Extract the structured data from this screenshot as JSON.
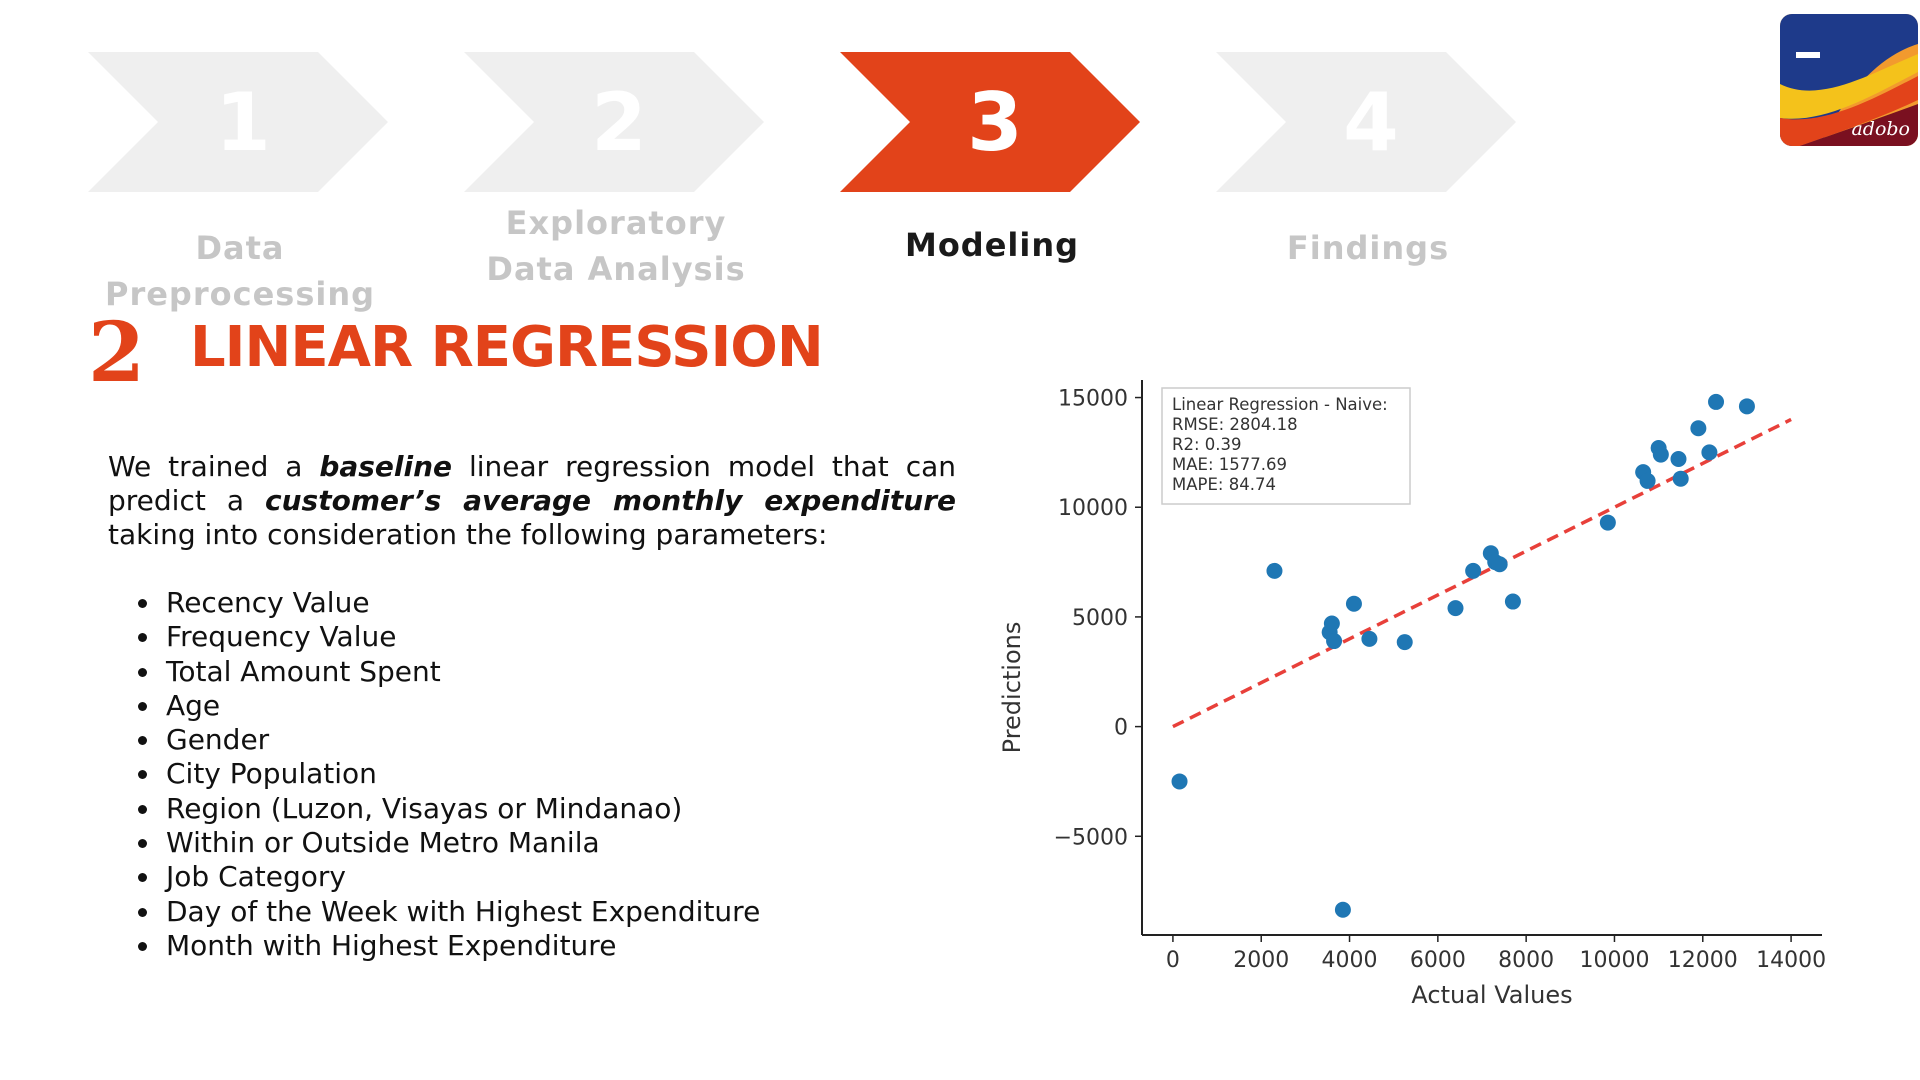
{
  "steps": [
    {
      "number": "1",
      "label_lines": [
        "Data Preprocessing"
      ],
      "state": "inactive"
    },
    {
      "number": "2",
      "label_lines": [
        "Exploratory",
        "Data Analysis"
      ],
      "state": "inactive"
    },
    {
      "number": "3",
      "label_lines": [
        "Modeling"
      ],
      "state": "active"
    },
    {
      "number": "4",
      "label_lines": [
        "Findings"
      ],
      "state": "inactive"
    }
  ],
  "colors": {
    "accent": "#e2431a",
    "inactive_chevron": "#efefef",
    "inactive_label": "#c6c6c6",
    "point": "#1f77b4",
    "fit_line": "#e8403a"
  },
  "logo": {
    "text": "adobo",
    "icon": "adobo-logo-icon"
  },
  "section": {
    "number": "2",
    "title": "LINEAR REGRESSION"
  },
  "intro": {
    "p1": "We trained a ",
    "em1": "baseline",
    "p2": " linear regression model that can predict a ",
    "em2": "customer’s average monthly expenditure",
    "p3": " taking into consideration the following parameters:"
  },
  "parameters": [
    "Recency Value",
    "Frequency Value",
    "Total Amount Spent",
    "Age",
    "Gender",
    "City Population",
    "Region (Luzon, Visayas or Mindanao)",
    "Within or Outside Metro Manila",
    "Job Category",
    "Day of the Week with Highest Expenditure",
    "Month with Highest Expenditure"
  ],
  "chart_data": {
    "type": "scatter",
    "title": "",
    "xlabel": "Actual Values",
    "ylabel": "Predictions",
    "xlim": [
      -700,
      14700
    ],
    "ylim": [
      -9500,
      15800
    ],
    "xticks": [
      0,
      2000,
      4000,
      6000,
      8000,
      10000,
      12000,
      14000
    ],
    "xtick_labels": [
      "0",
      "2000",
      "4000",
      "6000",
      "8000",
      "10000",
      "12000",
      "14000"
    ],
    "yticks": [
      -5000,
      0,
      5000,
      10000,
      15000
    ],
    "ytick_labels": [
      "−5000",
      "0",
      "5000",
      "10000",
      "15000"
    ],
    "grid": false,
    "legend_lines": [
      "Linear Regression - Naive:",
      "RMSE: 2804.18",
      "R2: 0.39",
      "MAE: 1577.69",
      "MAPE: 84.74"
    ],
    "legend_position": "top-left",
    "fit_line": {
      "x": [
        0,
        14000
      ],
      "y": [
        0,
        14000
      ],
      "style": "dashed"
    },
    "points": [
      {
        "x": 150,
        "y": -2500
      },
      {
        "x": 2300,
        "y": 7100
      },
      {
        "x": 3550,
        "y": 4300
      },
      {
        "x": 3600,
        "y": 4700
      },
      {
        "x": 3650,
        "y": 3900
      },
      {
        "x": 3850,
        "y": -8350
      },
      {
        "x": 4100,
        "y": 5600
      },
      {
        "x": 4450,
        "y": 4000
      },
      {
        "x": 5250,
        "y": 3850
      },
      {
        "x": 6400,
        "y": 5400
      },
      {
        "x": 6800,
        "y": 7100
      },
      {
        "x": 7200,
        "y": 7900
      },
      {
        "x": 7300,
        "y": 7500
      },
      {
        "x": 7400,
        "y": 7400
      },
      {
        "x": 7700,
        "y": 5700
      },
      {
        "x": 9850,
        "y": 9300
      },
      {
        "x": 10650,
        "y": 11600
      },
      {
        "x": 10750,
        "y": 11200
      },
      {
        "x": 11000,
        "y": 12700
      },
      {
        "x": 11050,
        "y": 12400
      },
      {
        "x": 11450,
        "y": 12200
      },
      {
        "x": 11500,
        "y": 11300
      },
      {
        "x": 11900,
        "y": 13600
      },
      {
        "x": 12150,
        "y": 12500
      },
      {
        "x": 12300,
        "y": 14800
      },
      {
        "x": 13000,
        "y": 14600
      }
    ]
  }
}
